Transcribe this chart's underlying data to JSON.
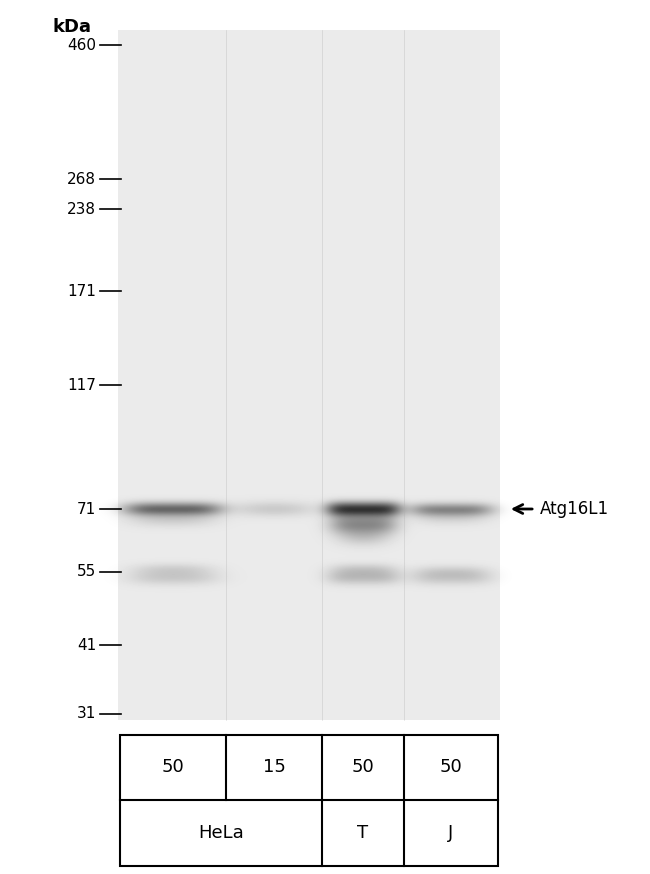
{
  "figsize": [
    6.5,
    8.74
  ],
  "dpi": 100,
  "kda_label": "kDa",
  "mw_markers": [
    460,
    268,
    238,
    171,
    117,
    71,
    55,
    41,
    31
  ],
  "gel_bg_color": "#e8e8e8",
  "white_bg": "#ffffff",
  "arrow_label": "Atg16L1",
  "lane_labels_row1": [
    "50",
    "15",
    "50",
    "50"
  ],
  "lane_label_row2_hela": "HeLa",
  "lane_label_row2_t": "T",
  "lane_label_row2_j": "J"
}
